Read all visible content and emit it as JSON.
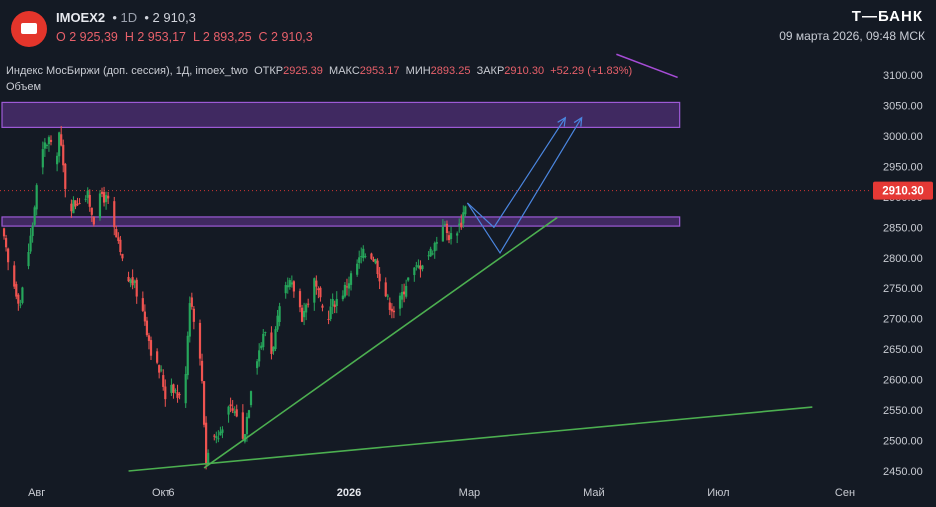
{
  "header": {
    "ticker": "IMOEX2",
    "interval": "1D",
    "last": "2 910,3",
    "open_label": "O 2 925,39",
    "high_label": "H 2 953,17",
    "low_label": "L 2 893,25",
    "close_label": "C 2 910,3",
    "brand": "Т—БАНК",
    "datetime": "09 марта 2026, 09:48 МСК"
  },
  "legend": {
    "name": "Индекс МосБиржи (доп. сессия), 1Д, imoex_two",
    "open_key": "ОТКР",
    "open_val": "2925.39",
    "high_key": "МАКС",
    "high_val": "2953.17",
    "low_key": "МИН",
    "low_val": "2893.25",
    "close_key": "ЗАКР",
    "close_val": "2910.30",
    "change": "+52.29 (+1.83%)",
    "volume_label": "Объем"
  },
  "colors": {
    "background": "#141a24",
    "up": "#26a65b",
    "down": "#ef5350",
    "zone": "#7e3fb8",
    "trend": "#4caf50",
    "arrow": "#4b86e0",
    "price_tag": "#e53935"
  },
  "chart_data": {
    "type": "candlestick",
    "price_label": "2910.30",
    "y_ticks": [
      3100,
      3050,
      3000,
      2950,
      2900,
      2850,
      2800,
      2750,
      2700,
      2650,
      2600,
      2550,
      2500,
      2450
    ],
    "x_ticks": [
      {
        "label": "Авг",
        "date": "2025-08-01"
      },
      {
        "label": "Окт",
        "date": "2025-10-01"
      },
      {
        "label": "6",
        "date": "2025-10-06"
      },
      {
        "label": "2026",
        "date": "2026-01-01"
      },
      {
        "label": "Мар",
        "date": "2026-03-01"
      },
      {
        "label": "Май",
        "date": "2026-05-01"
      },
      {
        "label": "Июл",
        "date": "2026-07-01"
      },
      {
        "label": "Сен",
        "date": "2026-09-01"
      }
    ],
    "zones": [
      {
        "from": 3014,
        "to": 3055,
        "start": "2025-07-15",
        "end": "2026-06-12"
      },
      {
        "from": 2852,
        "to": 2867,
        "start": "2025-07-15",
        "end": "2026-06-12"
      }
    ],
    "trendlines": [
      {
        "date1": "2025-09-15",
        "price1": 2450,
        "date2": "2026-08-16",
        "price2": 2555,
        "color": "green"
      },
      {
        "date1": "2025-10-22",
        "price1": 2455,
        "date2": "2026-04-13",
        "price2": 2866,
        "color": "green"
      },
      {
        "date1": "2026-05-12",
        "price1": 3134,
        "date2": "2026-06-11",
        "price2": 3096,
        "color": "purple"
      }
    ],
    "arrows": [
      {
        "points": [
          [
            "2026-02-28",
            2890
          ],
          [
            "2026-03-13",
            2850
          ],
          [
            "2026-04-17",
            3030
          ]
        ]
      },
      {
        "points": [
          [
            "2026-02-28",
            2890
          ],
          [
            "2026-03-16",
            2808
          ],
          [
            "2026-04-25",
            3030
          ]
        ]
      }
    ],
    "closes": [
      [
        "2025-07-15",
        2845
      ],
      [
        "2025-07-18",
        2790
      ],
      [
        "2025-07-21",
        2755
      ],
      [
        "2025-07-24",
        2725
      ],
      [
        "2025-07-27",
        2790
      ],
      [
        "2025-07-30",
        2855
      ],
      [
        "2025-08-02",
        2945
      ],
      [
        "2025-08-05",
        2985
      ],
      [
        "2025-08-07",
        2995
      ],
      [
        "2025-08-10",
        2950
      ],
      [
        "2025-08-12",
        3005
      ],
      [
        "2025-08-15",
        2920
      ],
      [
        "2025-08-17",
        2885
      ],
      [
        "2025-08-20",
        2890
      ],
      [
        "2025-08-23",
        2900
      ],
      [
        "2025-08-26",
        2900
      ],
      [
        "2025-08-29",
        2865
      ],
      [
        "2025-09-02",
        2905
      ],
      [
        "2025-09-05",
        2890
      ],
      [
        "2025-09-08",
        2845
      ],
      [
        "2025-09-11",
        2805
      ],
      [
        "2025-09-14",
        2765
      ],
      [
        "2025-09-17",
        2760
      ],
      [
        "2025-09-20",
        2735
      ],
      [
        "2025-09-23",
        2700
      ],
      [
        "2025-09-26",
        2650
      ],
      [
        "2025-09-29",
        2620
      ],
      [
        "2025-10-01",
        2610
      ],
      [
        "2025-10-03",
        2575
      ],
      [
        "2025-10-06",
        2595
      ],
      [
        "2025-10-09",
        2575
      ],
      [
        "2025-10-12",
        2560
      ],
      [
        "2025-10-15",
        2735
      ],
      [
        "2025-10-18",
        2690
      ],
      [
        "2025-10-21",
        2600
      ],
      [
        "2025-10-23",
        2465
      ],
      [
        "2025-10-26",
        2510
      ],
      [
        "2025-10-29",
        2505
      ],
      [
        "2025-11-01",
        2540
      ],
      [
        "2025-11-04",
        2550
      ],
      [
        "2025-11-07",
        2545
      ],
      [
        "2025-11-10",
        2500
      ],
      [
        "2025-11-13",
        2560
      ],
      [
        "2025-11-15",
        2620
      ],
      [
        "2025-11-18",
        2650
      ],
      [
        "2025-11-21",
        2680
      ],
      [
        "2025-11-24",
        2645
      ],
      [
        "2025-11-27",
        2695
      ],
      [
        "2025-11-30",
        2740
      ],
      [
        "2025-12-03",
        2755
      ],
      [
        "2025-12-06",
        2745
      ],
      [
        "2025-12-09",
        2705
      ],
      [
        "2025-12-12",
        2730
      ],
      [
        "2025-12-15",
        2760
      ],
      [
        "2025-12-18",
        2725
      ],
      [
        "2025-12-21",
        2700
      ],
      [
        "2025-12-24",
        2725
      ],
      [
        "2025-12-27",
        2735
      ],
      [
        "2025-12-30",
        2750
      ],
      [
        "2026-01-02",
        2770
      ],
      [
        "2026-01-05",
        2790
      ],
      [
        "2026-01-08",
        2805
      ],
      [
        "2026-01-11",
        2810
      ],
      [
        "2026-01-14",
        2795
      ],
      [
        "2026-01-17",
        2760
      ],
      [
        "2026-01-20",
        2730
      ],
      [
        "2026-01-23",
        2715
      ],
      [
        "2026-01-26",
        2730
      ],
      [
        "2026-01-29",
        2760
      ],
      [
        "2026-02-01",
        2775
      ],
      [
        "2026-02-04",
        2785
      ],
      [
        "2026-02-07",
        2800
      ],
      [
        "2026-02-10",
        2810
      ],
      [
        "2026-02-13",
        2830
      ],
      [
        "2026-02-16",
        2858
      ],
      [
        "2026-02-18",
        2840
      ],
      [
        "2026-02-20",
        2835
      ],
      [
        "2026-02-23",
        2850
      ],
      [
        "2026-02-25",
        2858
      ],
      [
        "2026-02-27",
        2890
      ],
      [
        "2026-02-28",
        2910
      ]
    ]
  }
}
